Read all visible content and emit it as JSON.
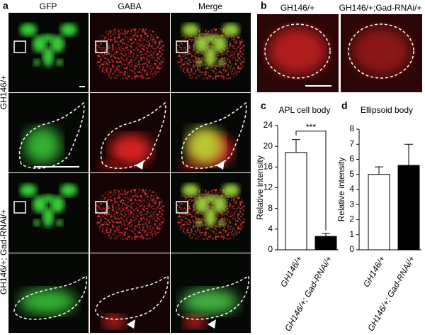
{
  "panel_labels": [
    "a",
    "b",
    "c",
    "d"
  ],
  "panel_a": {
    "columns": [
      "GFP",
      "GABA",
      "Merge"
    ],
    "rows": [
      "GH146/+",
      "GH146/+; Gad-RNAi/+"
    ]
  },
  "panel_b": {
    "columns": [
      "GH146/+",
      "GH146/+;Gad-RNAi/+"
    ]
  },
  "chart_data": [
    {
      "type": "bar",
      "title": "APL cell body",
      "y_label": "Relative intensity",
      "categories": [
        "GH146/+",
        "GH146/+; Gad-RNAi/+"
      ],
      "values": [
        18.8,
        2.6
      ],
      "errors": [
        2.5,
        0.6
      ],
      "colors": [
        "#ffffff",
        "#000000"
      ],
      "ylim": [
        0,
        24
      ],
      "yticks": [
        0,
        4,
        8,
        12,
        16,
        20,
        24
      ],
      "annotation": "***"
    },
    {
      "type": "bar",
      "title": "Ellipsoid body",
      "y_label": "Relative intensity",
      "categories": [
        "GH146/+",
        "GH146/+; Gad-RNAi/+"
      ],
      "values": [
        5.0,
        5.6
      ],
      "errors": [
        0.5,
        1.4
      ],
      "colors": [
        "#ffffff",
        "#000000"
      ],
      "ylim": [
        0,
        8
      ],
      "yticks": [
        0,
        1,
        2,
        3,
        4,
        5,
        6,
        7,
        8
      ]
    }
  ]
}
